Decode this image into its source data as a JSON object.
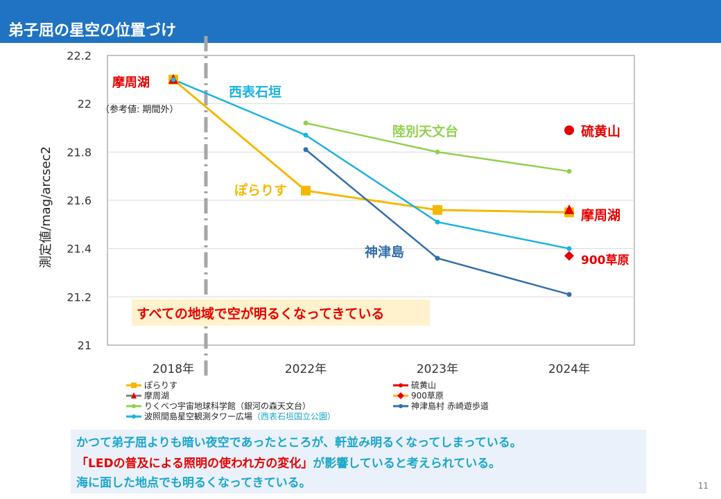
{
  "header": {
    "title": "弟子屈の星空の位置づけ"
  },
  "chart_data": {
    "type": "line",
    "categories": [
      "2018年",
      "2022年",
      "2023年",
      "2024年"
    ],
    "ylabel": "測定値/mag/arcsec2",
    "ylim": [
      21,
      22.2
    ],
    "yticks": [
      "21",
      "21.2",
      "21.4",
      "21.6",
      "21.8",
      "22",
      "22.2"
    ],
    "grid": true,
    "series": [
      {
        "name": "ぽらりす",
        "color": "#f5b800",
        "marker": "square",
        "values": [
          22.1,
          21.64,
          21.56,
          21.55
        ]
      },
      {
        "name": "摩周湖",
        "color": "#808080",
        "marker": "triangle",
        "values": [
          22.1,
          null,
          null,
          21.56
        ]
      },
      {
        "name": "りくべつ宇宙地球科学館（銀河の森天文台）",
        "color": "#92d050",
        "marker": "circle",
        "values": [
          null,
          21.92,
          21.8,
          21.72
        ]
      },
      {
        "name": "波照間島星空観測タワー広場（西表石垣国立公園）",
        "color": "#1ab2e0",
        "marker": "circle",
        "values": [
          22.1,
          21.87,
          21.51,
          21.4
        ]
      },
      {
        "name": "硫黄山",
        "color": "#e60000",
        "marker": "circle",
        "values": [
          null,
          null,
          null,
          21.89
        ]
      },
      {
        "name": "900草原",
        "color": "#f5b800",
        "marker": "diamond",
        "values": [
          null,
          null,
          null,
          21.37
        ]
      },
      {
        "name": "神津島村 赤崎遊歩道",
        "color": "#336fa8",
        "marker": "circle",
        "values": [
          null,
          21.81,
          21.36,
          21.21
        ]
      }
    ],
    "annotations": {
      "mashuko_2018": "摩周湖",
      "reference_note": "（参考値: 期間外）",
      "iriomote": "西表石垣",
      "rikubetsu": "陸別天文台",
      "ioyama": "硫黄山",
      "polaris": "ぽらりす",
      "mashuko_2024": "摩周湖",
      "kozushima": "神津島",
      "kusahara": "900草原",
      "callout": "すべての地域で空が明るくなってきている"
    },
    "legend": {
      "placement": "bottom",
      "entries": [
        {
          "label": "ぽらりす",
          "color": "#f5b800",
          "marker": "square"
        },
        {
          "label": "硫黄山",
          "color": "#e60000",
          "marker": "circle"
        },
        {
          "label": "摩周湖",
          "color": "#808080",
          "marker": "triangle",
          "markerColor": "#e60000"
        },
        {
          "label": "900草原",
          "color": "#f5b800",
          "marker": "diamond",
          "markerColor": "#e60000"
        },
        {
          "label": "りくべつ宇宙地球科学館（銀河の森天文台）",
          "color": "#92d050",
          "marker": "circle"
        },
        {
          "label": "神津島村 赤崎遊歩道",
          "color": "#336fa8",
          "marker": "circle"
        },
        {
          "label": "波照間島星空観測タワー広場",
          "sub": "（西表石垣国立公園）",
          "color": "#1ab2e0",
          "marker": "circle"
        }
      ]
    }
  },
  "notes": {
    "line1": "かつて弟子屈よりも暗い夜空であったところが、軒並み明るくなってしまっている。",
    "line2a": "「LEDの普及による照明の使われ方の変化」",
    "line2b": "が影響していると考えられている。",
    "line3": "海に面した地点でも明るくなってきている。"
  },
  "page": {
    "number": "11"
  }
}
